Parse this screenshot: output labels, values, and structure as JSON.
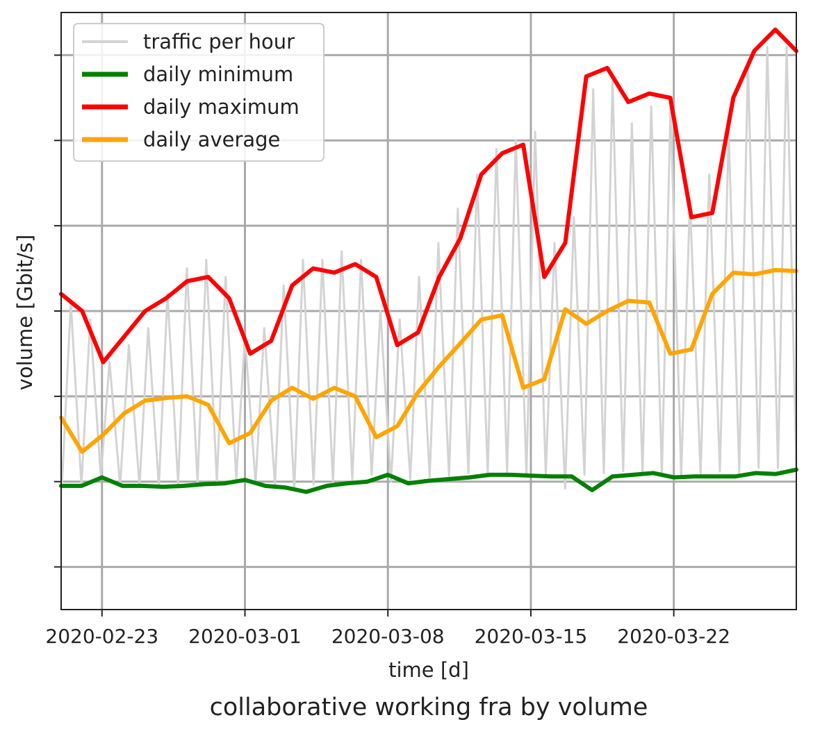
{
  "chart_data": {
    "type": "line",
    "title": "collaborative working fra by volume",
    "xlabel": "time [d]",
    "ylabel": "volume [Gbit/s]",
    "ylabels_shown": false,
    "grid": true,
    "legend_position": "top-left",
    "x_start": "2020-02-21",
    "x_end": "2020-03-28",
    "xticks": [
      "2020-02-23",
      "2020-03-01",
      "2020-03-08",
      "2020-03-15",
      "2020-03-22"
    ],
    "ylim": [
      -0.5,
      6.5
    ],
    "yticks": [
      0,
      1,
      2,
      3,
      4,
      5,
      6
    ],
    "series": [
      {
        "name": "traffic per hour",
        "color": "#d3d3d3",
        "kind": "hourly",
        "peaks": [
          3.1,
          2.9,
          2.4,
          2.6,
          2.8,
          3.2,
          3.5,
          3.6,
          3.4,
          2.7,
          2.8,
          3.3,
          3.6,
          3.6,
          3.7,
          3.6,
          3.0,
          2.9,
          3.4,
          3.8,
          4.2,
          4.6,
          4.9,
          5.0,
          5.1,
          3.8,
          4.1,
          5.6,
          5.7,
          5.2,
          5.4,
          5.4,
          4.3,
          4.6,
          5.1,
          5.9,
          6.1,
          6.1
        ],
        "troughs": [
          1.0,
          0.95,
          1.05,
          0.95,
          0.95,
          0.95,
          0.97,
          0.99,
          1.0,
          1.03,
          0.98,
          0.96,
          0.9,
          0.97,
          1.0,
          1.02,
          1.08,
          1.0,
          1.03,
          1.05,
          1.07,
          1.1,
          1.1,
          1.1,
          1.08,
          1.08,
          0.92,
          1.08,
          1.1,
          1.12,
          1.08,
          1.08,
          1.08,
          1.08,
          1.12,
          1.11,
          1.16,
          1.16
        ]
      },
      {
        "name": "daily minimum",
        "color": "#008000",
        "values": [
          0.95,
          0.95,
          1.05,
          0.95,
          0.95,
          0.94,
          0.95,
          0.97,
          0.98,
          1.02,
          0.95,
          0.93,
          0.88,
          0.95,
          0.98,
          1.0,
          1.08,
          0.98,
          1.01,
          1.03,
          1.05,
          1.08,
          1.08,
          1.07,
          1.06,
          1.06,
          0.9,
          1.06,
          1.08,
          1.1,
          1.05,
          1.06,
          1.06,
          1.06,
          1.1,
          1.09,
          1.14
        ]
      },
      {
        "name": "daily maximum",
        "color": "#ff0000",
        "values": [
          3.2,
          3.0,
          2.4,
          2.7,
          3.0,
          3.15,
          3.35,
          3.4,
          3.15,
          2.5,
          2.65,
          3.3,
          3.5,
          3.45,
          3.55,
          3.4,
          2.6,
          2.75,
          3.4,
          3.85,
          4.6,
          4.85,
          4.95,
          3.4,
          3.8,
          5.75,
          5.85,
          5.45,
          5.55,
          5.5,
          4.1,
          4.15,
          5.5,
          6.05,
          6.3,
          6.05
        ]
      },
      {
        "name": "daily average",
        "color": "#ffa500",
        "values": [
          1.75,
          1.35,
          1.55,
          1.8,
          1.95,
          1.98,
          2.0,
          1.9,
          1.45,
          1.57,
          1.95,
          2.1,
          1.97,
          2.1,
          2.0,
          1.52,
          1.65,
          2.05,
          2.35,
          2.62,
          2.9,
          2.95,
          2.1,
          2.2,
          3.02,
          2.85,
          3.0,
          3.12,
          3.1,
          2.5,
          2.55,
          3.2,
          3.45,
          3.43,
          3.48,
          3.47
        ]
      }
    ]
  }
}
